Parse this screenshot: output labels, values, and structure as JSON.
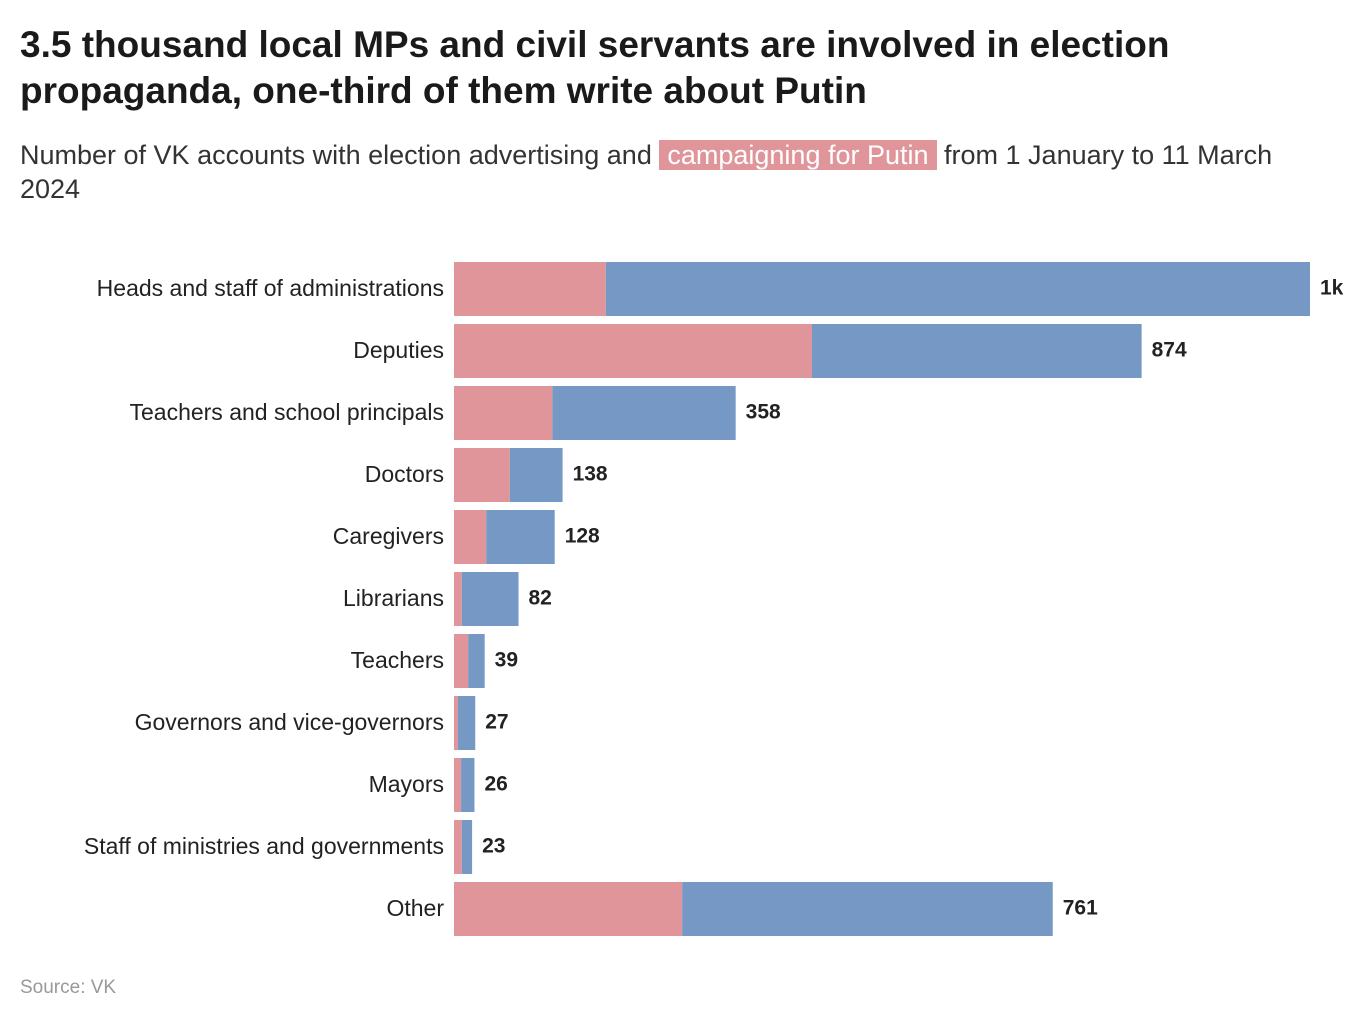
{
  "chart_data": {
    "type": "stacked-bar-horizontal",
    "title": "3.5 thousand local MPs and civil servants are involved in election propaganda, one-third of them write about Putin",
    "subtitle_before": "Number of VK accounts with election advertising and",
    "subtitle_after": "from 1 January to 11 March 2024",
    "source": "Source: VK",
    "categories": [
      "Heads and staff of administrations",
      "Deputies",
      "Teachers and school principals",
      "Doctors",
      "Caregivers",
      "Librarians",
      "Teachers",
      "Governors and vice-governors",
      "Mayors",
      "Staff of ministries and governments",
      "Other"
    ],
    "series": [
      {
        "name": "campaigning for Putin",
        "color": "#df9599",
        "values": [
          193,
          455,
          125,
          71,
          41,
          10,
          18,
          5,
          9,
          10,
          290
        ]
      },
      {
        "color": "#7698c5",
        "values": [
          895,
          419,
          233,
          67,
          87,
          72,
          21,
          22,
          17,
          13,
          471
        ]
      }
    ],
    "totals": [
      1088,
      874,
      358,
      138,
      128,
      82,
      39,
      27,
      26,
      23,
      761
    ],
    "value_labels": [
      "1k",
      "874",
      "358",
      "138",
      "128",
      "82",
      "39",
      "27",
      "26",
      "23",
      "761"
    ]
  }
}
